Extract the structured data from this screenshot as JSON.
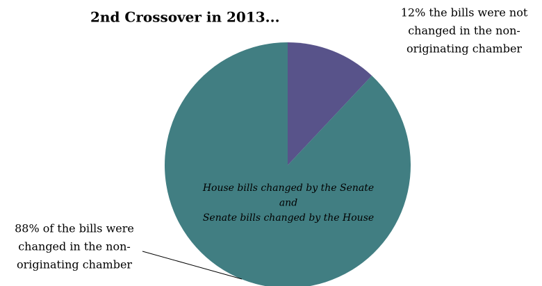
{
  "chart_data": {
    "type": "pie",
    "title": "2nd Crossover in 2013...",
    "categories": [
      null,
      null
    ],
    "values": [
      12,
      88
    ],
    "colors": [
      "#58538a",
      "#417e82"
    ],
    "labels": [
      [
        "12% the bills were not",
        "changed in the non-",
        "originating chamber"
      ],
      [
        "88% of the bills were",
        "changed in the non-",
        "originating chamber"
      ]
    ],
    "annotation": [
      "House bills changed by the Senate",
      "and",
      "Senate bills changed by the House"
    ]
  }
}
